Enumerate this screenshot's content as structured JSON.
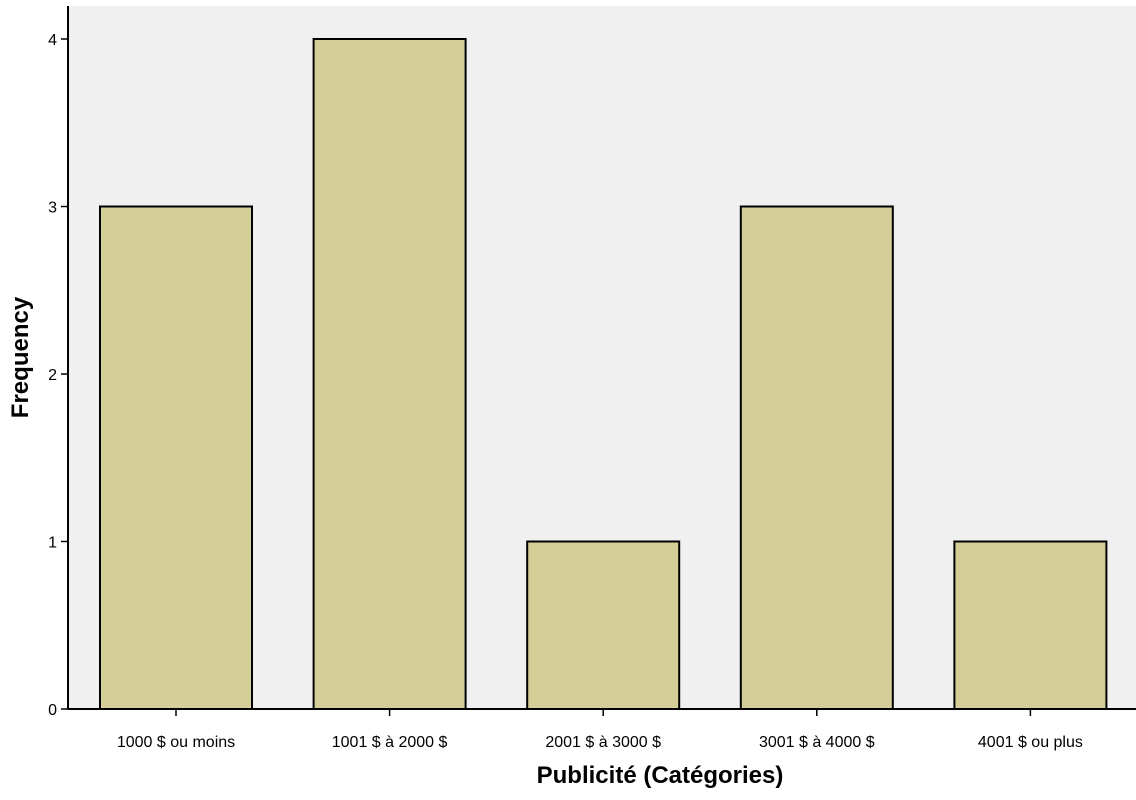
{
  "chart_data": {
    "type": "bar",
    "categories": [
      "1000 $ ou moins",
      "1001 $ à 2000 $",
      "2001 $ à 3000 $",
      "3001 $ à 4000 $",
      "4001 $ ou plus"
    ],
    "values": [
      3,
      4,
      1,
      3,
      1
    ],
    "xlabel": "Publicité (Catégories)",
    "ylabel": "Frequency",
    "ylim": [
      0,
      4
    ],
    "yticks": [
      "0",
      "1",
      "2",
      "3",
      "4"
    ],
    "grid": false,
    "colors": {
      "bar_fill": "#d4ce98",
      "bar_stroke": "#000000",
      "plot_background": "#f0f0f0"
    }
  }
}
